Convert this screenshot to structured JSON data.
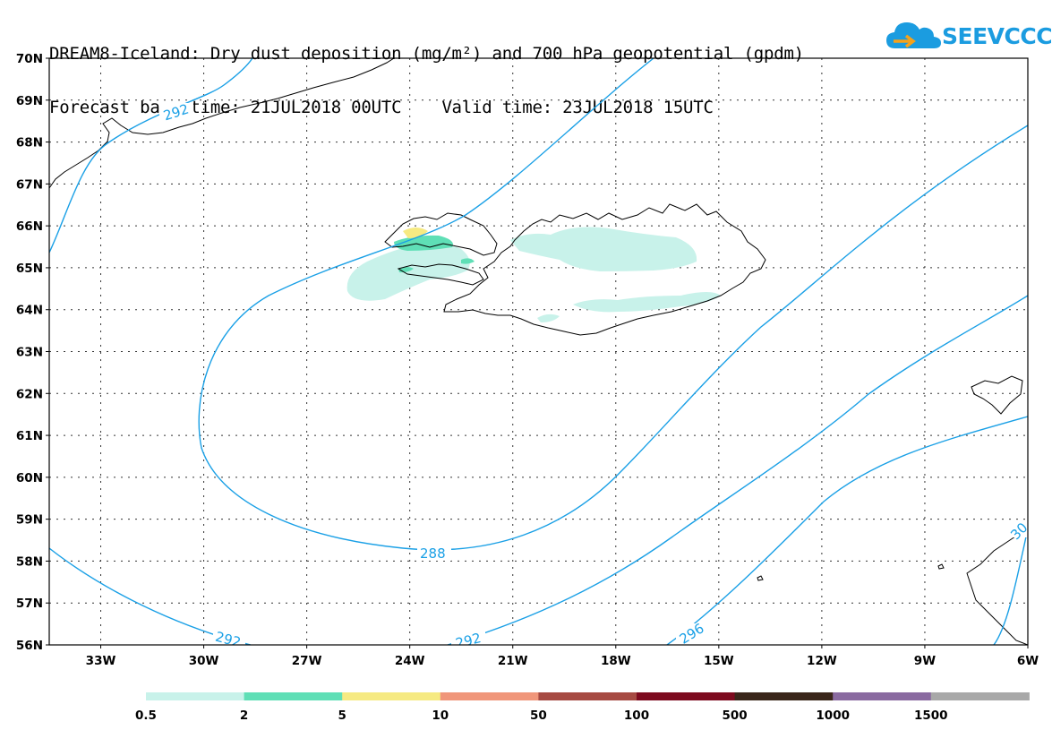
{
  "title": {
    "line1": "DREAM8-Iceland: Dry dust deposition (mg/m²) and 700 hPa geopotential (gpdm)",
    "line2": "Forecast base time: 21JUL2018 00UTC    Valid time: 23JUL2018 15UTC"
  },
  "logo": {
    "text": "SEEVCCC",
    "icon": "cloud-logo-icon",
    "color": "#1b9ce0"
  },
  "map": {
    "lon_range": [
      -34.5,
      -6
    ],
    "lat_range": [
      56,
      70
    ],
    "lat_labels": [
      "70N",
      "69N",
      "68N",
      "67N",
      "66N",
      "65N",
      "64N",
      "63N",
      "62N",
      "61N",
      "60N",
      "59N",
      "58N",
      "57N",
      "56N"
    ],
    "lon_labels": [
      "33W",
      "30W",
      "27W",
      "24W",
      "21W",
      "18W",
      "15W",
      "12W",
      "9W",
      "6W"
    ],
    "contour_color": "#1aa0e6",
    "contour_labels": [
      "292",
      "288",
      "292",
      "292",
      "296",
      "30"
    ]
  },
  "legend": {
    "colors": [
      "#c8f2ea",
      "#5fdfb6",
      "#f6ea82",
      "#f0967a",
      "#a64a42",
      "#7d0a1e",
      "#3a261a",
      "#8a6aa0",
      "#a8a8a8"
    ],
    "labels": [
      "0.5",
      "2",
      "5",
      "10",
      "50",
      "100",
      "500",
      "1000",
      "1500"
    ]
  }
}
